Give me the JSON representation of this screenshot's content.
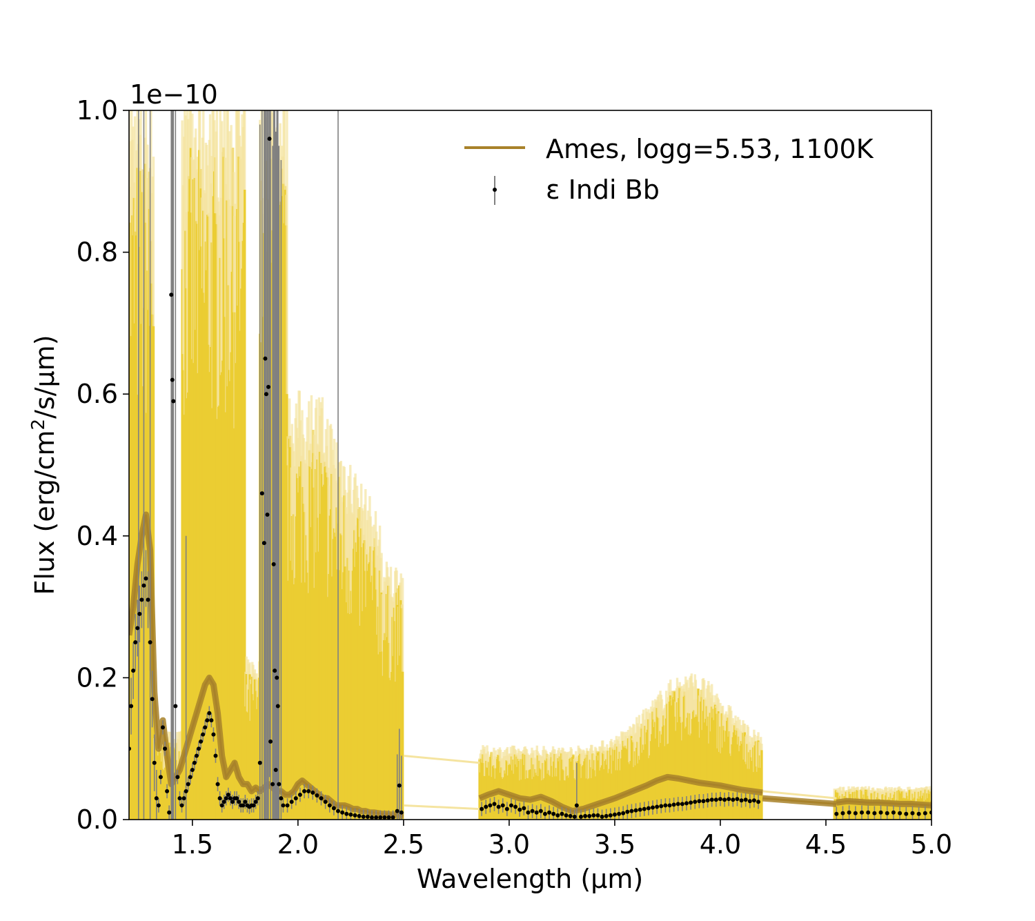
{
  "chart_data": {
    "type": "line",
    "title": "",
    "xlabel": "Wavelength (µm)",
    "ylabel_main": "Flux (erg/cm",
    "ylabel_sup": "2",
    "ylabel_rest": "/s/µm)",
    "offset_label": "1e−10",
    "xlim": [
      1.2,
      5.0
    ],
    "ylim": [
      0.0,
      1.0
    ],
    "y_scale_factor": 1e-10,
    "xticks": [
      1.5,
      2.0,
      2.5,
      3.0,
      3.5,
      4.0,
      4.5,
      5.0
    ],
    "xtick_labels": [
      "1.5",
      "2.0",
      "2.5",
      "3.0",
      "3.5",
      "4.0",
      "4.5",
      "5.0"
    ],
    "yticks": [
      0.0,
      0.2,
      0.4,
      0.6,
      0.8,
      1.0
    ],
    "ytick_labels": [
      "0.0",
      "0.2",
      "0.4",
      "0.6",
      "0.8",
      "1.0"
    ],
    "grid": false,
    "legend_position": "top-right",
    "colors": {
      "model": "#a8822a",
      "envelope": "#ebcd32",
      "envelope_faint": "#f5e4a0",
      "data": "#000000",
      "errorbar": "#808080"
    },
    "legend": [
      {
        "label": "Ames, logg=5.53, 1100K",
        "kind": "line"
      },
      {
        "label": "ε Indi Bb",
        "kind": "errorbar"
      }
    ],
    "series": [
      {
        "name": "Ames, logg=5.53, 1100K",
        "segments": [
          {
            "x": [
              1.2,
              1.22,
              1.24,
              1.26,
              1.28,
              1.3,
              1.32,
              1.34,
              1.36,
              1.38,
              1.4,
              1.42,
              1.44,
              1.46,
              1.48,
              1.5,
              1.52,
              1.54,
              1.56,
              1.58,
              1.6,
              1.62,
              1.64,
              1.66,
              1.68,
              1.7,
              1.72,
              1.74,
              1.76,
              1.78,
              1.8,
              1.82,
              1.84,
              1.86,
              1.88,
              1.9,
              1.92,
              1.94,
              1.96,
              1.98,
              2.0,
              2.02,
              2.04,
              2.06,
              2.08,
              2.1,
              2.12,
              2.14,
              2.16,
              2.18,
              2.2,
              2.22,
              2.24,
              2.26,
              2.28,
              2.3,
              2.32,
              2.34,
              2.36,
              2.38,
              2.4,
              2.42,
              2.44,
              2.46,
              2.48,
              2.5
            ],
            "y": [
              0.26,
              0.3,
              0.36,
              0.4,
              0.43,
              0.38,
              0.18,
              0.1,
              0.14,
              0.09,
              0.05,
              0.06,
              0.07,
              0.09,
              0.11,
              0.13,
              0.15,
              0.17,
              0.19,
              0.2,
              0.19,
              0.15,
              0.09,
              0.06,
              0.07,
              0.08,
              0.06,
              0.05,
              0.05,
              0.04,
              0.045,
              0.04,
              0.045,
              0.05,
              0.045,
              0.04,
              0.04,
              0.035,
              0.035,
              0.04,
              0.05,
              0.055,
              0.05,
              0.045,
              0.04,
              0.035,
              0.03,
              0.03,
              0.025,
              0.02,
              0.02,
              0.02,
              0.018,
              0.015,
              0.015,
              0.012,
              0.012,
              0.01,
              0.01,
              0.009,
              0.008,
              0.008,
              0.007,
              0.007,
              0.006,
              0.006
            ]
          },
          {
            "x": [
              2.86,
              2.9,
              2.95,
              3.0,
              3.05,
              3.1,
              3.15,
              3.2,
              3.25,
              3.3,
              3.35,
              3.4,
              3.45,
              3.5,
              3.55,
              3.6,
              3.65,
              3.7,
              3.75,
              3.8,
              3.85,
              3.9,
              3.95,
              4.0,
              4.05,
              4.1,
              4.15,
              4.2
            ],
            "y": [
              0.03,
              0.035,
              0.04,
              0.035,
              0.03,
              0.028,
              0.032,
              0.026,
              0.018,
              0.012,
              0.015,
              0.02,
              0.025,
              0.03,
              0.036,
              0.042,
              0.048,
              0.055,
              0.06,
              0.058,
              0.055,
              0.052,
              0.05,
              0.048,
              0.045,
              0.042,
              0.04,
              0.038
            ]
          },
          {
            "x": [
              4.2,
              4.55
            ],
            "y": [
              0.03,
              0.022
            ]
          },
          {
            "x": [
              4.55,
              4.6,
              4.65,
              4.7,
              4.75,
              4.8,
              4.85,
              4.9,
              4.95,
              5.0
            ],
            "y": [
              0.024,
              0.026,
              0.025,
              0.024,
              0.024,
              0.023,
              0.022,
              0.022,
              0.021,
              0.02
            ]
          }
        ]
      },
      {
        "name": "ε Indi Bb",
        "points": [
          [
            1.2,
            0.1
          ],
          [
            1.21,
            0.16
          ],
          [
            1.22,
            0.21
          ],
          [
            1.23,
            0.25
          ],
          [
            1.24,
            0.27
          ],
          [
            1.25,
            0.29
          ],
          [
            1.26,
            0.31
          ],
          [
            1.27,
            0.33
          ],
          [
            1.28,
            0.34
          ],
          [
            1.29,
            0.31
          ],
          [
            1.3,
            0.25
          ],
          [
            1.31,
            0.17
          ],
          [
            1.32,
            0.08
          ],
          [
            1.33,
            0.03
          ],
          [
            1.34,
            0.02
          ],
          [
            1.35,
            0.06
          ],
          [
            1.36,
            0.13
          ],
          [
            1.37,
            0.1
          ],
          [
            1.38,
            0.04
          ],
          [
            1.39,
            0.01
          ],
          [
            1.4,
            0.74
          ],
          [
            1.405,
            0.62
          ],
          [
            1.41,
            0.59
          ],
          [
            1.42,
            0.16
          ],
          [
            1.43,
            0.06
          ],
          [
            1.44,
            0.03
          ],
          [
            1.45,
            0.02
          ],
          [
            1.46,
            0.03
          ],
          [
            1.47,
            0.04
          ],
          [
            1.48,
            0.05
          ],
          [
            1.49,
            0.06
          ],
          [
            1.5,
            0.07
          ],
          [
            1.51,
            0.08
          ],
          [
            1.52,
            0.09
          ],
          [
            1.53,
            0.1
          ],
          [
            1.54,
            0.11
          ],
          [
            1.55,
            0.12
          ],
          [
            1.56,
            0.13
          ],
          [
            1.57,
            0.14
          ],
          [
            1.58,
            0.15
          ],
          [
            1.59,
            0.14
          ],
          [
            1.6,
            0.12
          ],
          [
            1.61,
            0.09
          ],
          [
            1.62,
            0.05
          ],
          [
            1.63,
            0.03
          ],
          [
            1.64,
            0.02
          ],
          [
            1.65,
            0.025
          ],
          [
            1.66,
            0.03
          ],
          [
            1.67,
            0.035
          ],
          [
            1.68,
            0.03
          ],
          [
            1.69,
            0.025
          ],
          [
            1.7,
            0.03
          ],
          [
            1.71,
            0.03
          ],
          [
            1.72,
            0.025
          ],
          [
            1.73,
            0.02
          ],
          [
            1.74,
            0.02
          ],
          [
            1.75,
            0.025
          ],
          [
            1.76,
            0.02
          ],
          [
            1.77,
            0.018
          ],
          [
            1.78,
            0.02
          ],
          [
            1.79,
            0.02
          ],
          [
            1.8,
            0.025
          ],
          [
            1.81,
            0.03
          ],
          [
            1.82,
            0.08
          ],
          [
            1.83,
            0.46
          ],
          [
            1.84,
            0.39
          ],
          [
            1.845,
            0.65
          ],
          [
            1.85,
            0.6
          ],
          [
            1.855,
            0.43
          ],
          [
            1.86,
            0.61
          ],
          [
            1.865,
            0.96
          ],
          [
            1.87,
            0.11
          ],
          [
            1.88,
            0.05
          ],
          [
            1.885,
            0.36
          ],
          [
            1.89,
            0.21
          ],
          [
            1.895,
            0.07
          ],
          [
            1.9,
            0.2
          ],
          [
            1.905,
            0.16
          ],
          [
            1.91,
            0.05
          ],
          [
            1.92,
            0.03
          ],
          [
            1.93,
            0.02
          ],
          [
            1.95,
            0.02
          ],
          [
            1.97,
            0.025
          ],
          [
            1.99,
            0.03
          ],
          [
            2.01,
            0.035
          ],
          [
            2.03,
            0.04
          ],
          [
            2.05,
            0.04
          ],
          [
            2.07,
            0.038
          ],
          [
            2.09,
            0.034
          ],
          [
            2.11,
            0.03
          ],
          [
            2.13,
            0.025
          ],
          [
            2.15,
            0.02
          ],
          [
            2.17,
            0.016
          ],
          [
            2.19,
            0.012
          ],
          [
            2.21,
            0.01
          ],
          [
            2.23,
            0.008
          ],
          [
            2.25,
            0.007
          ],
          [
            2.27,
            0.006
          ],
          [
            2.29,
            0.005
          ],
          [
            2.31,
            0.004
          ],
          [
            2.33,
            0.004
          ],
          [
            2.35,
            0.003
          ],
          [
            2.37,
            0.003
          ],
          [
            2.39,
            0.003
          ],
          [
            2.41,
            0.003
          ],
          [
            2.43,
            0.003
          ],
          [
            2.45,
            0.003
          ],
          [
            2.47,
            0.012
          ],
          [
            2.48,
            0.048
          ],
          [
            2.49,
            0.01
          ],
          [
            2.87,
            0.015
          ],
          [
            2.89,
            0.018
          ],
          [
            2.91,
            0.02
          ],
          [
            2.93,
            0.022
          ],
          [
            2.95,
            0.018
          ],
          [
            2.97,
            0.02
          ],
          [
            2.99,
            0.015
          ],
          [
            3.01,
            0.02
          ],
          [
            3.03,
            0.018
          ],
          [
            3.05,
            0.014
          ],
          [
            3.07,
            0.016
          ],
          [
            3.09,
            0.01
          ],
          [
            3.11,
            0.012
          ],
          [
            3.13,
            0.01
          ],
          [
            3.15,
            0.012
          ],
          [
            3.17,
            0.008
          ],
          [
            3.19,
            0.01
          ],
          [
            3.21,
            0.008
          ],
          [
            3.23,
            0.006
          ],
          [
            3.25,
            0.008
          ],
          [
            3.27,
            0.006
          ],
          [
            3.29,
            0.005
          ],
          [
            3.31,
            0.004
          ],
          [
            3.32,
            0.02
          ],
          [
            3.34,
            0.004
          ],
          [
            3.36,
            0.005
          ],
          [
            3.38,
            0.005
          ],
          [
            3.4,
            0.006
          ],
          [
            3.42,
            0.006
          ],
          [
            3.44,
            0.004
          ],
          [
            3.46,
            0.005
          ],
          [
            3.48,
            0.006
          ],
          [
            3.5,
            0.007
          ],
          [
            3.52,
            0.008
          ],
          [
            3.54,
            0.009
          ],
          [
            3.56,
            0.011
          ],
          [
            3.58,
            0.012
          ],
          [
            3.6,
            0.013
          ],
          [
            3.62,
            0.014
          ],
          [
            3.64,
            0.015
          ],
          [
            3.66,
            0.016
          ],
          [
            3.68,
            0.017
          ],
          [
            3.7,
            0.018
          ],
          [
            3.72,
            0.019
          ],
          [
            3.74,
            0.02
          ],
          [
            3.76,
            0.02
          ],
          [
            3.78,
            0.021
          ],
          [
            3.8,
            0.022
          ],
          [
            3.82,
            0.022
          ],
          [
            3.84,
            0.023
          ],
          [
            3.86,
            0.024
          ],
          [
            3.88,
            0.025
          ],
          [
            3.9,
            0.026
          ],
          [
            3.92,
            0.026
          ],
          [
            3.94,
            0.027
          ],
          [
            3.96,
            0.028
          ],
          [
            3.98,
            0.028
          ],
          [
            4.0,
            0.029
          ],
          [
            4.02,
            0.028
          ],
          [
            4.04,
            0.029
          ],
          [
            4.06,
            0.028
          ],
          [
            4.08,
            0.029
          ],
          [
            4.1,
            0.027
          ],
          [
            4.12,
            0.028
          ],
          [
            4.14,
            0.026
          ],
          [
            4.16,
            0.027
          ],
          [
            4.18,
            0.025
          ],
          [
            4.55,
            0.008
          ],
          [
            4.58,
            0.009
          ],
          [
            4.61,
            0.01
          ],
          [
            4.64,
            0.009
          ],
          [
            4.67,
            0.01
          ],
          [
            4.7,
            0.01
          ],
          [
            4.73,
            0.009
          ],
          [
            4.76,
            0.01
          ],
          [
            4.79,
            0.009
          ],
          [
            4.82,
            0.01
          ],
          [
            4.85,
            0.009
          ],
          [
            4.88,
            0.008
          ],
          [
            4.91,
            0.009
          ],
          [
            4.94,
            0.008
          ],
          [
            4.97,
            0.009
          ],
          [
            5.0,
            0.01
          ]
        ]
      }
    ]
  }
}
